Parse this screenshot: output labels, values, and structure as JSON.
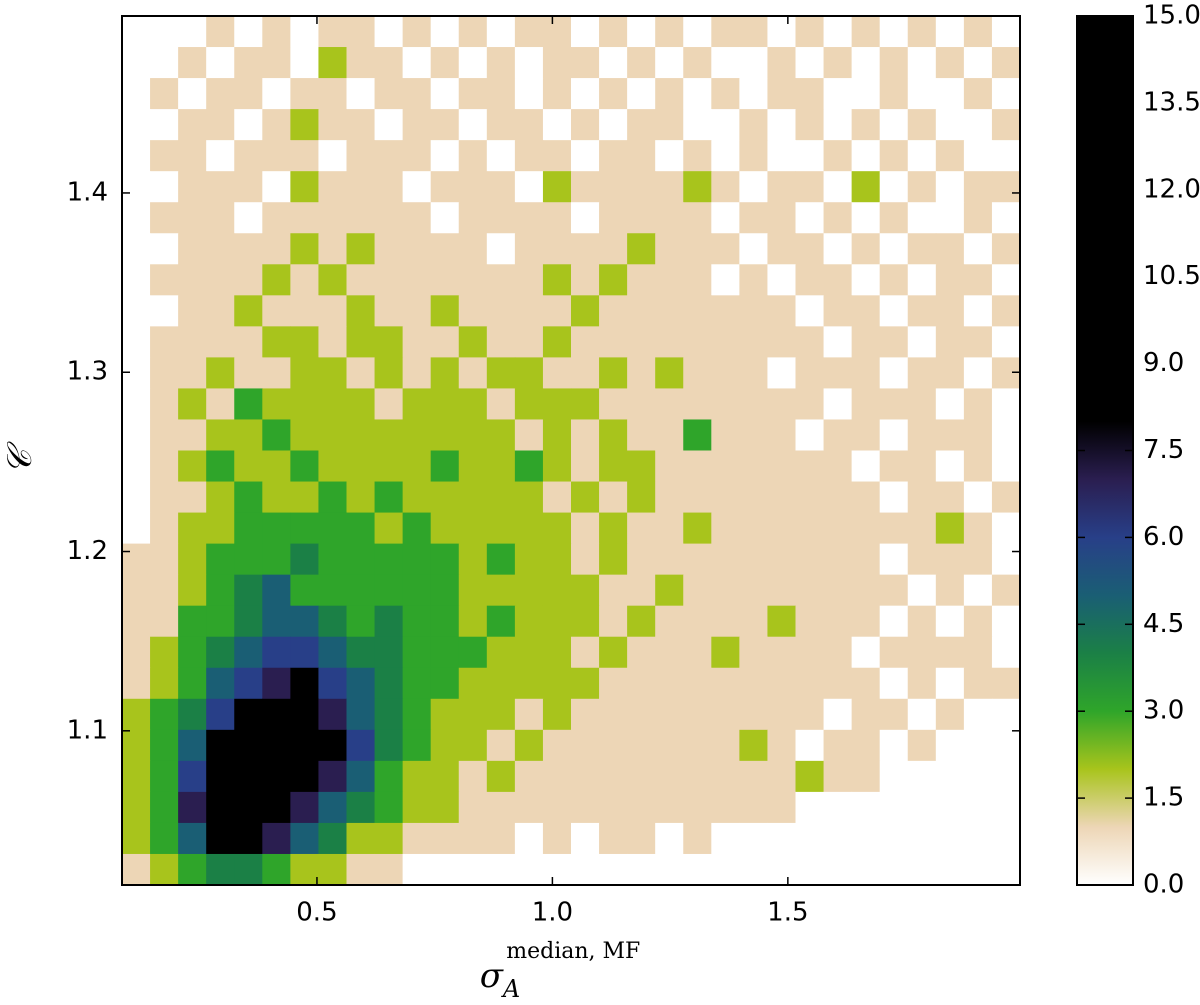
{
  "chart_data": {
    "type": "heatmap2d",
    "xlabel": {
      "symbol": "σ",
      "subscript": "A",
      "superscript": "median, MF"
    },
    "ylabel": "𝒞",
    "xlim": [
      0.086,
      1.993
    ],
    "ylim": [
      1.014,
      1.4987
    ],
    "xticks": [
      0.5,
      {
        "value": 1.0,
        "label": "1.0"
      },
      1.5
    ],
    "yticks": [
      1.1,
      1.2,
      1.3,
      1.4
    ],
    "clim": [
      0,
      15
    ],
    "cticks": [
      {
        "value": 0,
        "label": "0.0"
      },
      1.5,
      {
        "value": 3,
        "label": "3.0"
      },
      4.5,
      {
        "value": 6,
        "label": "6.0"
      },
      7.5,
      {
        "value": 9,
        "label": "9.0"
      },
      10.5,
      {
        "value": 12,
        "label": "12.0"
      },
      13.5,
      {
        "value": 15,
        "label": "15.0"
      }
    ],
    "colors": [
      "#ffffff",
      "#edd6b6",
      "#a8c41c",
      "#2fa52a",
      "#1b8046",
      "#1a5e74",
      "#283f88",
      "#2a1e50",
      "#000000",
      "#000000",
      "#000000",
      "#000000",
      "#000000",
      "#000000",
      "#000000",
      "#000000"
    ],
    "z": [
      [
        0,
        0,
        0,
        1,
        0,
        1,
        0,
        1,
        1,
        0,
        1,
        0,
        1,
        0,
        1,
        1,
        0,
        1,
        0,
        1,
        0,
        1,
        1,
        0,
        1,
        0,
        1,
        0,
        1,
        0,
        1,
        0
      ],
      [
        0,
        0,
        1,
        0,
        1,
        1,
        0,
        2,
        1,
        1,
        0,
        1,
        0,
        1,
        0,
        1,
        1,
        0,
        1,
        0,
        1,
        0,
        0,
        1,
        0,
        1,
        0,
        1,
        0,
        1,
        0,
        1
      ],
      [
        0,
        1,
        0,
        1,
        1,
        0,
        1,
        1,
        0,
        1,
        1,
        0,
        1,
        1,
        0,
        1,
        0,
        1,
        0,
        1,
        0,
        1,
        0,
        1,
        1,
        0,
        0,
        1,
        0,
        0,
        1,
        0
      ],
      [
        0,
        0,
        1,
        1,
        0,
        1,
        2,
        1,
        1,
        0,
        1,
        1,
        0,
        1,
        1,
        0,
        1,
        0,
        1,
        1,
        0,
        0,
        1,
        0,
        1,
        0,
        1,
        0,
        1,
        0,
        0,
        1
      ],
      [
        0,
        1,
        1,
        0,
        1,
        1,
        1,
        0,
        1,
        1,
        1,
        0,
        1,
        0,
        1,
        1,
        0,
        1,
        1,
        0,
        1,
        0,
        1,
        0,
        0,
        1,
        0,
        1,
        0,
        1,
        0,
        0
      ],
      [
        0,
        0,
        1,
        1,
        1,
        0,
        2,
        1,
        1,
        1,
        0,
        1,
        1,
        1,
        0,
        2,
        1,
        1,
        1,
        1,
        2,
        1,
        0,
        1,
        1,
        0,
        2,
        0,
        1,
        0,
        1,
        1
      ],
      [
        0,
        1,
        1,
        1,
        0,
        1,
        1,
        1,
        1,
        1,
        1,
        0,
        1,
        1,
        1,
        1,
        0,
        1,
        1,
        1,
        1,
        0,
        1,
        1,
        0,
        1,
        0,
        1,
        0,
        0,
        1,
        0
      ],
      [
        0,
        0,
        1,
        1,
        1,
        1,
        2,
        1,
        2,
        1,
        1,
        1,
        1,
        0,
        1,
        1,
        1,
        1,
        2,
        1,
        1,
        1,
        0,
        1,
        1,
        0,
        1,
        0,
        1,
        1,
        0,
        1
      ],
      [
        0,
        1,
        1,
        1,
        1,
        2,
        1,
        2,
        1,
        1,
        1,
        1,
        1,
        1,
        1,
        2,
        1,
        2,
        1,
        1,
        1,
        0,
        1,
        0,
        1,
        1,
        0,
        1,
        0,
        1,
        1,
        0
      ],
      [
        0,
        0,
        1,
        1,
        2,
        1,
        1,
        1,
        2,
        1,
        1,
        2,
        1,
        1,
        1,
        1,
        2,
        1,
        1,
        1,
        1,
        1,
        1,
        1,
        0,
        1,
        1,
        0,
        1,
        1,
        0,
        1
      ],
      [
        0,
        1,
        1,
        1,
        1,
        2,
        2,
        1,
        2,
        2,
        1,
        1,
        2,
        1,
        1,
        2,
        1,
        1,
        1,
        1,
        1,
        1,
        1,
        1,
        1,
        0,
        1,
        1,
        0,
        1,
        1,
        0
      ],
      [
        0,
        1,
        1,
        2,
        1,
        1,
        2,
        2,
        1,
        2,
        1,
        2,
        1,
        2,
        2,
        1,
        1,
        2,
        1,
        2,
        1,
        1,
        1,
        0,
        1,
        1,
        1,
        0,
        1,
        1,
        0,
        1
      ],
      [
        0,
        1,
        2,
        1,
        3,
        2,
        2,
        2,
        2,
        1,
        2,
        2,
        2,
        1,
        2,
        2,
        2,
        1,
        1,
        1,
        1,
        1,
        1,
        1,
        1,
        0,
        1,
        1,
        1,
        0,
        1,
        0
      ],
      [
        0,
        1,
        1,
        2,
        2,
        3,
        2,
        2,
        2,
        2,
        2,
        2,
        2,
        2,
        1,
        2,
        1,
        2,
        1,
        1,
        3,
        1,
        1,
        1,
        0,
        1,
        1,
        0,
        1,
        1,
        1,
        0
      ],
      [
        0,
        1,
        2,
        3,
        2,
        2,
        3,
        2,
        2,
        2,
        2,
        3,
        2,
        2,
        3,
        2,
        1,
        2,
        2,
        1,
        1,
        1,
        1,
        1,
        1,
        1,
        0,
        1,
        1,
        0,
        1,
        0
      ],
      [
        0,
        1,
        1,
        2,
        3,
        2,
        2,
        3,
        2,
        3,
        2,
        2,
        2,
        2,
        2,
        1,
        2,
        1,
        2,
        1,
        1,
        1,
        1,
        1,
        1,
        1,
        1,
        0,
        1,
        1,
        0,
        1
      ],
      [
        0,
        1,
        2,
        2,
        3,
        3,
        3,
        3,
        3,
        2,
        3,
        2,
        2,
        2,
        2,
        2,
        1,
        2,
        1,
        1,
        2,
        1,
        1,
        1,
        1,
        1,
        1,
        1,
        1,
        2,
        1,
        0
      ],
      [
        1,
        1,
        2,
        3,
        3,
        3,
        4,
        3,
        3,
        3,
        3,
        3,
        2,
        3,
        2,
        2,
        1,
        2,
        1,
        1,
        1,
        1,
        1,
        1,
        1,
        1,
        1,
        0,
        1,
        1,
        1,
        0
      ],
      [
        1,
        1,
        2,
        3,
        4,
        5,
        3,
        3,
        3,
        3,
        3,
        3,
        2,
        2,
        2,
        2,
        2,
        1,
        1,
        2,
        1,
        1,
        1,
        1,
        1,
        1,
        1,
        1,
        0,
        1,
        0,
        1
      ],
      [
        1,
        1,
        3,
        3,
        4,
        5,
        5,
        4,
        3,
        4,
        3,
        3,
        2,
        3,
        2,
        2,
        2,
        1,
        2,
        1,
        1,
        1,
        1,
        2,
        1,
        1,
        1,
        0,
        1,
        0,
        1,
        0
      ],
      [
        1,
        2,
        3,
        4,
        5,
        6,
        6,
        5,
        4,
        4,
        3,
        3,
        3,
        2,
        2,
        2,
        1,
        2,
        1,
        1,
        1,
        2,
        1,
        1,
        1,
        1,
        0,
        1,
        1,
        1,
        1,
        0
      ],
      [
        1,
        2,
        3,
        5,
        6,
        7,
        8,
        6,
        5,
        4,
        3,
        3,
        2,
        2,
        2,
        2,
        2,
        1,
        1,
        1,
        1,
        1,
        1,
        1,
        1,
        1,
        1,
        0,
        1,
        0,
        1,
        1
      ],
      [
        2,
        3,
        4,
        6,
        8,
        9,
        8,
        7,
        5,
        4,
        3,
        2,
        2,
        2,
        1,
        2,
        1,
        1,
        1,
        1,
        1,
        1,
        1,
        1,
        1,
        0,
        1,
        1,
        0,
        1,
        0,
        0
      ],
      [
        2,
        3,
        5,
        8,
        11,
        12,
        10,
        8,
        6,
        4,
        3,
        2,
        2,
        1,
        2,
        1,
        1,
        1,
        1,
        1,
        1,
        1,
        2,
        1,
        0,
        1,
        1,
        0,
        1,
        0,
        0,
        0
      ],
      [
        2,
        3,
        6,
        10,
        13,
        12,
        9,
        7,
        5,
        3,
        2,
        2,
        1,
        2,
        1,
        1,
        1,
        1,
        1,
        1,
        1,
        1,
        1,
        1,
        2,
        1,
        1,
        0,
        0,
        0,
        0,
        0
      ],
      [
        2,
        3,
        7,
        12,
        14,
        10,
        7,
        5,
        4,
        3,
        2,
        2,
        1,
        1,
        1,
        1,
        1,
        1,
        1,
        1,
        1,
        1,
        1,
        1,
        0,
        0,
        0,
        0,
        0,
        0,
        0,
        0
      ],
      [
        2,
        3,
        5,
        9,
        10,
        7,
        5,
        4,
        2,
        2,
        1,
        1,
        1,
        1,
        0,
        1,
        0,
        1,
        1,
        0,
        1,
        0,
        0,
        0,
        0,
        0,
        0,
        0,
        0,
        0,
        0,
        0
      ],
      [
        1,
        2,
        3,
        4,
        4,
        3,
        2,
        2,
        1,
        1,
        0,
        0,
        0,
        0,
        0,
        0,
        0,
        0,
        0,
        0,
        0,
        0,
        0,
        0,
        0,
        0,
        0,
        0,
        0,
        0,
        0,
        0
      ]
    ]
  }
}
